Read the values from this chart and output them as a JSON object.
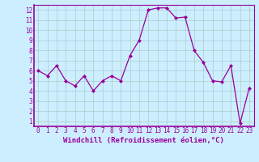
{
  "x": [
    0,
    1,
    2,
    3,
    4,
    5,
    6,
    7,
    8,
    9,
    10,
    11,
    12,
    13,
    14,
    15,
    16,
    17,
    18,
    19,
    20,
    21,
    22,
    23
  ],
  "y": [
    6.0,
    5.5,
    6.5,
    5.0,
    4.5,
    5.5,
    4.0,
    5.0,
    5.5,
    5.0,
    7.5,
    9.0,
    12.0,
    12.2,
    12.2,
    11.2,
    11.3,
    8.0,
    6.8,
    5.0,
    4.9,
    6.5,
    0.8,
    4.3
  ],
  "line_color": "#990099",
  "marker": "D",
  "marker_size": 2.0,
  "linewidth": 0.9,
  "xlabel": "Windchill (Refroidissement éolien,°C)",
  "xlabel_fontsize": 6.5,
  "xlabel_color": "#990099",
  "background_color": "#cceeff",
  "grid_color": "#aacccc",
  "ylim": [
    0.5,
    12.5
  ],
  "xlim": [
    -0.5,
    23.5
  ],
  "yticks": [
    1,
    2,
    3,
    4,
    5,
    6,
    7,
    8,
    9,
    10,
    11,
    12
  ],
  "xticks": [
    0,
    1,
    2,
    3,
    4,
    5,
    6,
    7,
    8,
    9,
    10,
    11,
    12,
    13,
    14,
    15,
    16,
    17,
    18,
    19,
    20,
    21,
    22,
    23
  ],
  "tick_color": "#990099",
  "tick_fontsize": 5.5,
  "spine_color": "#990099",
  "title_color": "#990099"
}
